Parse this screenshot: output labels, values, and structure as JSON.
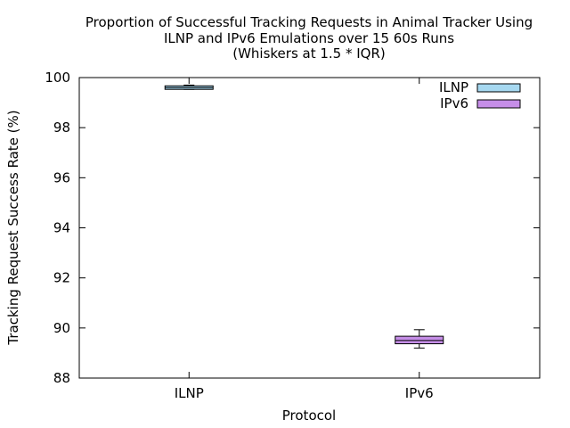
{
  "chart_data": {
    "type": "box",
    "title_lines": [
      "Proportion of Successful Tracking Requests in Animal Tracker Using",
      "ILNP and IPv6 Emulations over 15 60s Runs",
      "(Whiskers at 1.5 * IQR)"
    ],
    "xlabel": "Protocol",
    "ylabel": "Tracking Request Success Rate (%)",
    "ylim": [
      88,
      100
    ],
    "yticks": [
      "88",
      "90",
      "92",
      "94",
      "96",
      "98",
      "100"
    ],
    "categories": [
      "ILNP",
      "IPv6"
    ],
    "series": [
      {
        "name": "ILNP",
        "color": "#a6d8f0",
        "whisker_low": 99.53,
        "q1": 99.53,
        "median": 99.6,
        "q3": 99.67,
        "whisker_high": 99.7
      },
      {
        "name": "IPv6",
        "color": "#c68ee8",
        "whisker_low": 89.2,
        "q1": 89.37,
        "median": 89.5,
        "q3": 89.67,
        "whisker_high": 89.93
      }
    ],
    "legend_position": "top-right",
    "grid": false
  }
}
